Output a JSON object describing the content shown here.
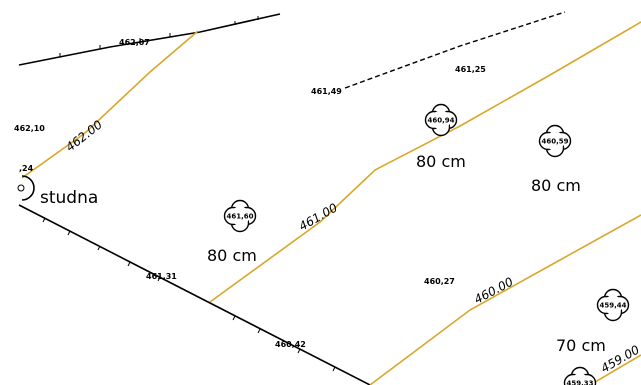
{
  "colors": {
    "contour": "#d9a628",
    "boundary": "#000000",
    "background": "#ffffff"
  },
  "contours": [
    {
      "label": "462.00"
    },
    {
      "label": "461.00"
    },
    {
      "label": "460.00"
    },
    {
      "label": "459.00"
    }
  ],
  "spot_heights": [
    {
      "value": "462,07"
    },
    {
      "value": "461,49"
    },
    {
      "value": "461,25"
    },
    {
      "value": "462,10"
    },
    {
      "value": ",24"
    },
    {
      "value": "461,31"
    },
    {
      "value": "460,27"
    },
    {
      "value": "460,42"
    }
  ],
  "trees": [
    {
      "code": "461,60",
      "size": "80 cm"
    },
    {
      "code": "460,94",
      "size": "80 cm"
    },
    {
      "code": "460,59",
      "size": "80 cm"
    },
    {
      "code": "459,44",
      "size": "70 cm"
    },
    {
      "code": "459,33",
      "size": ""
    }
  ],
  "well": {
    "label": "studna",
    "icon": "well-icon"
  }
}
